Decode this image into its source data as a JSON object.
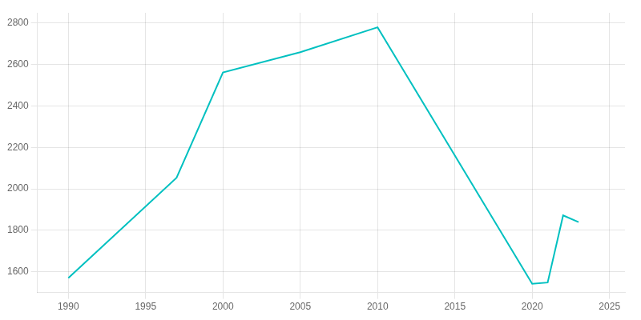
{
  "chart_data": {
    "type": "line",
    "x": [
      1990,
      1997,
      2000,
      2005,
      2010,
      2020,
      2021,
      2022,
      2023
    ],
    "values": [
      1570,
      2054,
      2562,
      2660,
      2780,
      1542,
      1548,
      1872,
      1840
    ],
    "color": "#00c0c0",
    "xlim": [
      1988,
      2026
    ],
    "ylim": [
      1500,
      2850
    ],
    "xticks": [
      1990,
      1995,
      2000,
      2005,
      2010,
      2015,
      2020,
      2025
    ],
    "yticks": [
      1600,
      1800,
      2000,
      2200,
      2400,
      2600,
      2800
    ],
    "grid": true
  }
}
